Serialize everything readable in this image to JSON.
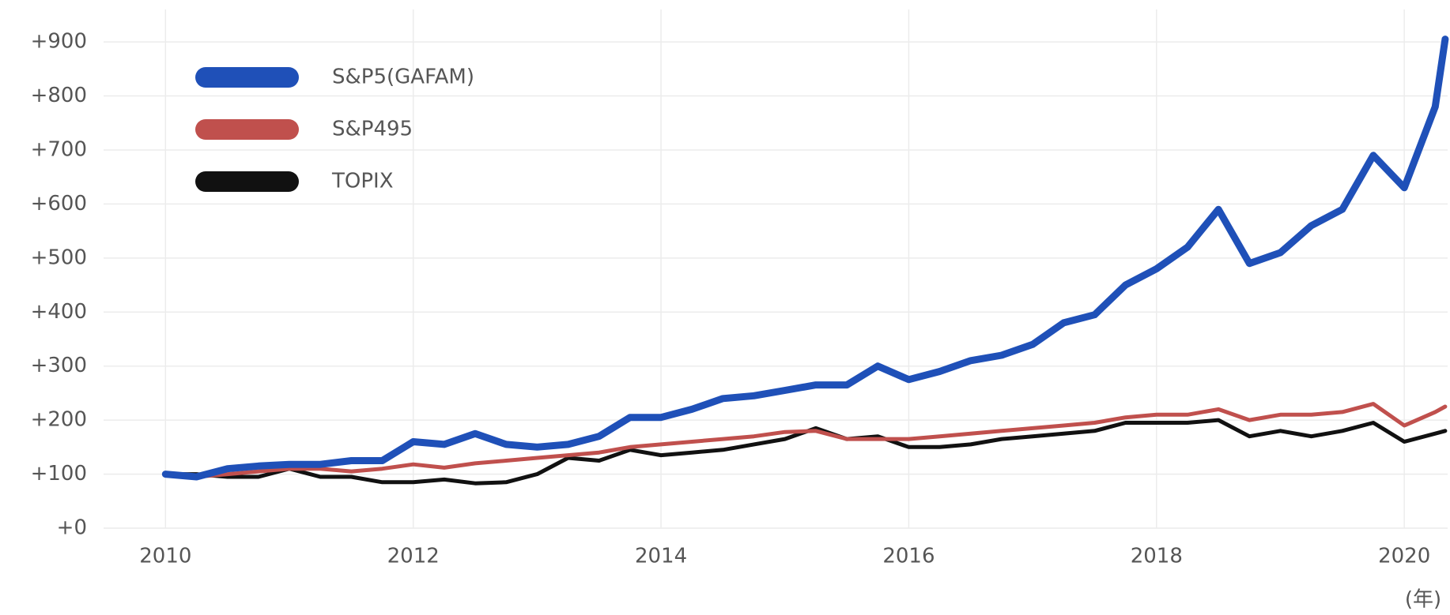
{
  "chart_data": {
    "type": "line",
    "x_label": "(年)",
    "x": [
      2010,
      2010.25,
      2010.5,
      2010.75,
      2011,
      2011.25,
      2011.5,
      2011.75,
      2012,
      2012.25,
      2012.5,
      2012.75,
      2013,
      2013.25,
      2013.5,
      2013.75,
      2014,
      2014.25,
      2014.5,
      2014.75,
      2015,
      2015.25,
      2015.5,
      2015.75,
      2016,
      2016.25,
      2016.5,
      2016.75,
      2017,
      2017.25,
      2017.5,
      2017.75,
      2018,
      2018.25,
      2018.5,
      2018.75,
      2019,
      2019.25,
      2019.5,
      2019.75,
      2020,
      2020.25,
      2020.33
    ],
    "series": [
      {
        "name": "S&P5(GAFAM)",
        "color": "#1f50b8",
        "values": [
          100,
          95,
          110,
          115,
          118,
          118,
          125,
          125,
          160,
          155,
          175,
          155,
          150,
          155,
          170,
          205,
          205,
          220,
          240,
          245,
          255,
          265,
          265,
          300,
          275,
          290,
          310,
          320,
          340,
          380,
          395,
          450,
          480,
          520,
          590,
          490,
          510,
          560,
          590,
          690,
          630,
          780,
          905
        ]
      },
      {
        "name": "S&P495",
        "color": "#c0504d",
        "values": [
          100,
          95,
          100,
          105,
          110,
          110,
          105,
          110,
          118,
          112,
          120,
          125,
          130,
          135,
          140,
          150,
          155,
          160,
          165,
          170,
          178,
          180,
          165,
          165,
          165,
          170,
          175,
          180,
          185,
          190,
          195,
          205,
          210,
          210,
          220,
          200,
          210,
          210,
          215,
          230,
          190,
          215,
          225
        ]
      },
      {
        "name": "TOPIX",
        "color": "#111111",
        "values": [
          100,
          100,
          95,
          95,
          110,
          95,
          95,
          85,
          85,
          90,
          83,
          85,
          100,
          130,
          125,
          145,
          135,
          140,
          145,
          155,
          165,
          185,
          165,
          170,
          150,
          150,
          155,
          165,
          170,
          175,
          180,
          195,
          195,
          195,
          200,
          170,
          180,
          170,
          180,
          195,
          160,
          175,
          180
        ]
      }
    ],
    "xlim": [
      2009.5,
      2020.35
    ],
    "xticks": [
      2010,
      2012,
      2014,
      2016,
      2018,
      2020
    ],
    "ylim": [
      0,
      960
    ],
    "yticks": [
      {
        "value": 0,
        "label": "+0"
      },
      {
        "value": 100,
        "label": "+100"
      },
      {
        "value": 200,
        "label": "+200"
      },
      {
        "value": 300,
        "label": "+300"
      },
      {
        "value": 400,
        "label": "+400"
      },
      {
        "value": 500,
        "label": "+500"
      },
      {
        "value": 600,
        "label": "+600"
      },
      {
        "value": 700,
        "label": "+700"
      },
      {
        "value": 800,
        "label": "+800"
      },
      {
        "value": 900,
        "label": "+900"
      }
    ],
    "grid": true,
    "legend": "upper-left"
  }
}
